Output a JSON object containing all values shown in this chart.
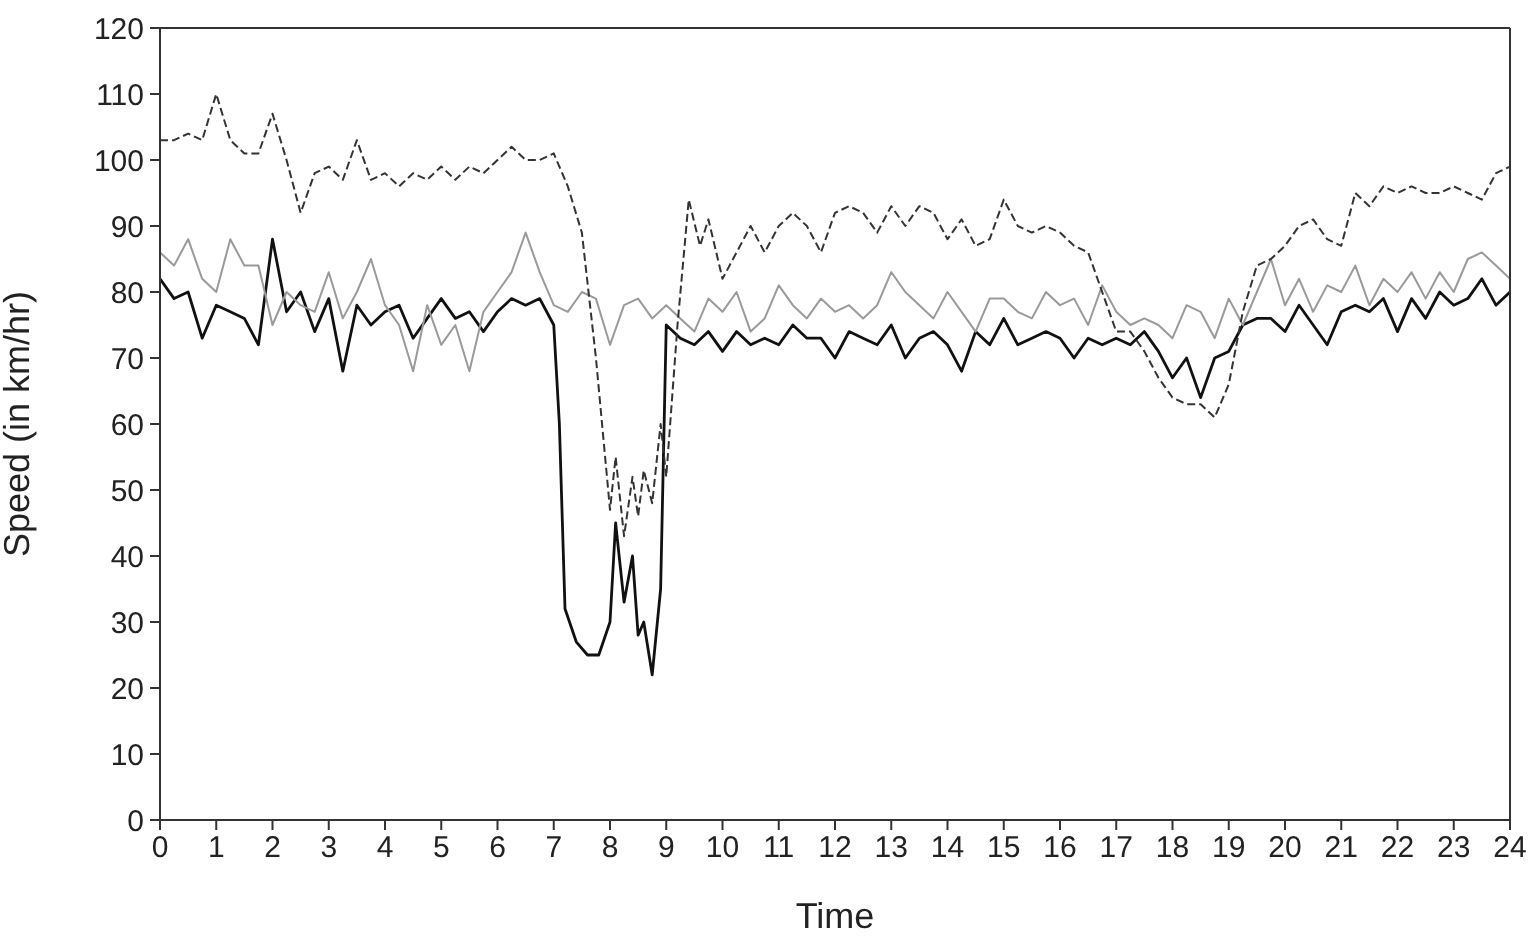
{
  "chart_data": {
    "type": "line",
    "xlabel": "Time",
    "ylabel": "Speed (in km/hr)",
    "xlim": [
      0,
      24
    ],
    "xticks": [
      0,
      1,
      2,
      3,
      4,
      5,
      6,
      7,
      8,
      9,
      10,
      11,
      12,
      13,
      14,
      15,
      16,
      17,
      18,
      19,
      20,
      21,
      22,
      23,
      24
    ],
    "ylim": [
      0,
      120
    ],
    "yticks": [
      0,
      10,
      20,
      30,
      40,
      50,
      60,
      70,
      80,
      90,
      100,
      110,
      120
    ],
    "marker": "none",
    "series": [
      {
        "color": "#111111",
        "line_style": "solid",
        "x": [
          0,
          0.25,
          0.5,
          0.75,
          1,
          1.25,
          1.5,
          1.75,
          2,
          2.25,
          2.5,
          2.75,
          3,
          3.25,
          3.5,
          3.75,
          4,
          4.25,
          4.5,
          4.75,
          5,
          5.25,
          5.5,
          5.75,
          6,
          6.25,
          6.5,
          6.75,
          7,
          7.1,
          7.2,
          7.4,
          7.6,
          7.8,
          8,
          8.1,
          8.25,
          8.4,
          8.5,
          8.6,
          8.75,
          8.9,
          9,
          9.25,
          9.5,
          9.75,
          10,
          10.25,
          10.5,
          10.75,
          11,
          11.25,
          11.5,
          11.75,
          12,
          12.25,
          12.5,
          12.75,
          13,
          13.25,
          13.5,
          13.75,
          14,
          14.25,
          14.5,
          14.75,
          15,
          15.25,
          15.5,
          15.75,
          16,
          16.25,
          16.5,
          16.75,
          17,
          17.25,
          17.5,
          17.75,
          18,
          18.25,
          18.5,
          18.75,
          19,
          19.25,
          19.5,
          19.75,
          20,
          20.25,
          20.5,
          20.75,
          21,
          21.25,
          21.5,
          21.75,
          22,
          22.25,
          22.5,
          22.75,
          23,
          23.25,
          23.5,
          23.75,
          24
        ],
        "values": [
          82,
          79,
          80,
          73,
          78,
          77,
          76,
          72,
          88,
          77,
          80,
          74,
          79,
          68,
          78,
          75,
          77,
          78,
          73,
          76,
          79,
          76,
          77,
          74,
          77,
          79,
          78,
          79,
          75,
          60,
          32,
          27,
          25,
          25,
          30,
          45,
          33,
          40,
          28,
          30,
          22,
          35,
          75,
          73,
          72,
          74,
          71,
          74,
          72,
          73,
          72,
          75,
          73,
          73,
          70,
          74,
          73,
          72,
          75,
          70,
          73,
          74,
          72,
          68,
          74,
          72,
          76,
          72,
          73,
          74,
          73,
          70,
          73,
          72,
          73,
          72,
          74,
          71,
          67,
          70,
          64,
          70,
          71,
          75,
          76,
          76,
          74,
          78,
          75,
          72,
          77,
          78,
          77,
          79,
          74,
          79,
          76,
          80,
          78,
          79,
          82,
          78,
          80
        ]
      },
      {
        "color": "#9a9a9a",
        "line_style": "solid",
        "x": [
          0,
          0.25,
          0.5,
          0.75,
          1,
          1.25,
          1.5,
          1.75,
          2,
          2.25,
          2.5,
          2.75,
          3,
          3.25,
          3.5,
          3.75,
          4,
          4.25,
          4.5,
          4.75,
          5,
          5.25,
          5.5,
          5.75,
          6,
          6.25,
          6.5,
          6.75,
          7,
          7.25,
          7.5,
          7.75,
          8,
          8.25,
          8.5,
          8.75,
          9,
          9.25,
          9.5,
          9.75,
          10,
          10.25,
          10.5,
          10.75,
          11,
          11.25,
          11.5,
          11.75,
          12,
          12.25,
          12.5,
          12.75,
          13,
          13.25,
          13.5,
          13.75,
          14,
          14.25,
          14.5,
          14.75,
          15,
          15.25,
          15.5,
          15.75,
          16,
          16.25,
          16.5,
          16.75,
          17,
          17.25,
          17.5,
          17.75,
          18,
          18.25,
          18.5,
          18.75,
          19,
          19.25,
          19.5,
          19.75,
          20,
          20.25,
          20.5,
          20.75,
          21,
          21.25,
          21.5,
          21.75,
          22,
          22.25,
          22.5,
          22.75,
          23,
          23.25,
          23.5,
          23.75,
          24
        ],
        "values": [
          86,
          84,
          88,
          82,
          80,
          88,
          84,
          84,
          75,
          80,
          78,
          77,
          83,
          76,
          80,
          85,
          78,
          75,
          68,
          78,
          72,
          75,
          68,
          77,
          80,
          83,
          89,
          83,
          78,
          77,
          80,
          79,
          72,
          78,
          79,
          76,
          78,
          76,
          74,
          79,
          77,
          80,
          74,
          76,
          81,
          78,
          76,
          79,
          77,
          78,
          76,
          78,
          83,
          80,
          78,
          76,
          80,
          77,
          74,
          79,
          79,
          77,
          76,
          80,
          78,
          79,
          75,
          81,
          77,
          75,
          76,
          75,
          73,
          78,
          77,
          73,
          79,
          75,
          80,
          85,
          78,
          82,
          77,
          81,
          80,
          84,
          78,
          82,
          80,
          83,
          79,
          83,
          80,
          85,
          86,
          84,
          82
        ]
      },
      {
        "color": "#333333",
        "line_style": "dashed",
        "x": [
          0,
          0.25,
          0.5,
          0.75,
          1,
          1.25,
          1.5,
          1.75,
          2,
          2.25,
          2.5,
          2.75,
          3,
          3.25,
          3.5,
          3.75,
          4,
          4.25,
          4.5,
          4.75,
          5,
          5.25,
          5.5,
          5.75,
          6,
          6.25,
          6.5,
          6.75,
          7,
          7.25,
          7.5,
          7.75,
          8,
          8.1,
          8.25,
          8.4,
          8.5,
          8.6,
          8.75,
          8.9,
          9,
          9.2,
          9.4,
          9.6,
          9.75,
          10,
          10.25,
          10.5,
          10.75,
          11,
          11.25,
          11.5,
          11.75,
          12,
          12.25,
          12.5,
          12.75,
          13,
          13.25,
          13.5,
          13.75,
          14,
          14.25,
          14.5,
          14.75,
          15,
          15.25,
          15.5,
          15.75,
          16,
          16.25,
          16.5,
          16.75,
          17,
          17.25,
          17.5,
          17.75,
          18,
          18.25,
          18.5,
          18.75,
          19,
          19.25,
          19.5,
          19.75,
          20,
          20.25,
          20.5,
          20.75,
          21,
          21.25,
          21.5,
          21.75,
          22,
          22.25,
          22.5,
          22.75,
          23,
          23.25,
          23.5,
          23.75,
          24
        ],
        "values": [
          103,
          103,
          104,
          103,
          110,
          103,
          101,
          101,
          107,
          100,
          92,
          98,
          99,
          97,
          103,
          97,
          98,
          96,
          98,
          97,
          99,
          97,
          99,
          98,
          100,
          102,
          100,
          100,
          101,
          96,
          89,
          70,
          47,
          55,
          43,
          52,
          46,
          53,
          48,
          60,
          52,
          75,
          94,
          87,
          91,
          82,
          86,
          90,
          86,
          90,
          92,
          90,
          86,
          92,
          93,
          92,
          89,
          93,
          90,
          93,
          92,
          88,
          91,
          87,
          88,
          94,
          90,
          89,
          90,
          89,
          87,
          86,
          80,
          74,
          74,
          71,
          67,
          64,
          63,
          63,
          61,
          66,
          77,
          84,
          85,
          87,
          90,
          91,
          88,
          87,
          95,
          93,
          96,
          95,
          96,
          95,
          95,
          96,
          95,
          94,
          98,
          99
        ]
      }
    ]
  }
}
